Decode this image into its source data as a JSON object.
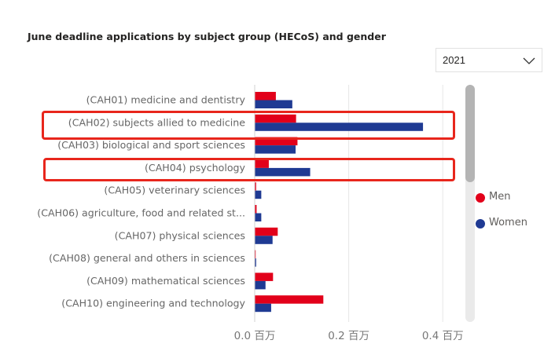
{
  "title": "June deadline applications by subject group (HECoS) and gender",
  "year_filter": {
    "selected": "2021"
  },
  "colors": {
    "men": "#e2001a",
    "women": "#1f3a93",
    "highlight": "#e8261c"
  },
  "chart_data": {
    "type": "bar",
    "orientation": "horizontal",
    "title": "June deadline applications by subject group (HECoS) and gender",
    "unit": "millions (百万)",
    "categories": [
      "(CAH01) medicine and dentistry",
      "(CAH02) subjects allied to medicine",
      "(CAH03) biological and sport sciences",
      "(CAH04) psychology",
      "(CAH05) veterinary sciences",
      "(CAH06) agriculture, food and related st...",
      "(CAH07) physical sciences",
      "(CAH08) general and others in sciences",
      "(CAH09) mathematical sciences",
      "(CAH10) engineering and technology"
    ],
    "series": [
      {
        "name": "Men",
        "color": "#e2001a",
        "values": [
          0.045,
          0.088,
          0.091,
          0.03,
          0.003,
          0.004,
          0.049,
          0.002,
          0.039,
          0.146
        ]
      },
      {
        "name": "Women",
        "color": "#1f3a93",
        "values": [
          0.08,
          0.358,
          0.087,
          0.118,
          0.014,
          0.014,
          0.038,
          0.003,
          0.023,
          0.035
        ]
      }
    ],
    "xlim": [
      0,
      0.45
    ],
    "x_ticks": [
      {
        "value": 0.0,
        "label": "0.0 百万"
      },
      {
        "value": 0.2,
        "label": "0.2 百万"
      },
      {
        "value": 0.4,
        "label": "0.4 百万"
      }
    ],
    "grid": true,
    "legend": {
      "position": "right",
      "entries": [
        "Men",
        "Women"
      ]
    },
    "annotations": [
      {
        "type": "highlight-box",
        "category": "(CAH02) subjects allied to medicine"
      },
      {
        "type": "highlight-box",
        "category": "(CAH04) psychology"
      }
    ]
  }
}
